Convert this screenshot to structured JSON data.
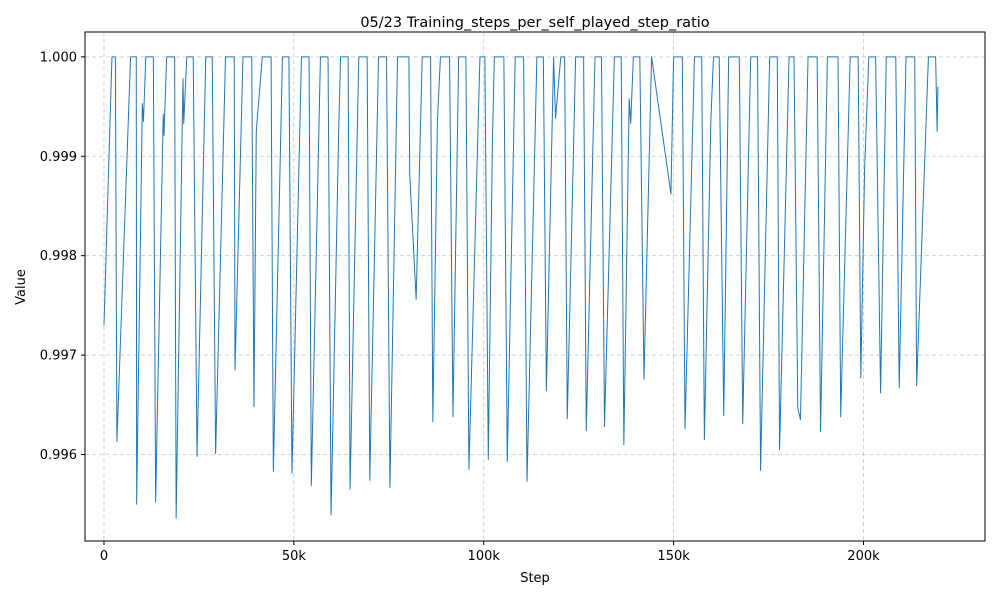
{
  "chart_data": {
    "type": "line",
    "title": "05/23  Training_steps_per_self_played_step_ratio",
    "xlabel": "Step",
    "ylabel": "Value",
    "xlim": [
      -5000,
      232000
    ],
    "ylim": [
      0.99513,
      1.00025
    ],
    "grid": true,
    "line_color": "#1f77b4",
    "x_ticks": [
      {
        "value": 0,
        "label": "0"
      },
      {
        "value": 50000,
        "label": "50k"
      },
      {
        "value": 100000,
        "label": "100k"
      },
      {
        "value": 150000,
        "label": "150k"
      },
      {
        "value": 200000,
        "label": "200k"
      }
    ],
    "y_ticks": [
      {
        "value": 0.996,
        "label": "0.996"
      },
      {
        "value": 0.997,
        "label": "0.997"
      },
      {
        "value": 0.998,
        "label": "0.998"
      },
      {
        "value": 0.999,
        "label": "0.999"
      },
      {
        "value": 1.0,
        "label": "1.000"
      }
    ],
    "series": [
      {
        "values": [
          [
            0,
            0.9973
          ],
          [
            2100,
            1.0
          ],
          [
            3000,
            1.0
          ],
          [
            3400,
            0.99613
          ],
          [
            7000,
            1.0
          ],
          [
            8500,
            1.0
          ],
          [
            8600,
            0.9955
          ],
          [
            10100,
            0.99953
          ],
          [
            10400,
            0.99935
          ],
          [
            11000,
            1.0
          ],
          [
            13000,
            1.0
          ],
          [
            13600,
            0.99552
          ],
          [
            15600,
            0.99942
          ],
          [
            15800,
            0.99921
          ],
          [
            16500,
            1.0
          ],
          [
            18600,
            1.0
          ],
          [
            19000,
            0.99536
          ],
          [
            20800,
            0.99978
          ],
          [
            21000,
            0.99933
          ],
          [
            21800,
            1.0
          ],
          [
            23500,
            1.0
          ],
          [
            24500,
            0.99598
          ],
          [
            26800,
            1.0
          ],
          [
            28500,
            1.0
          ],
          [
            29400,
            0.99601
          ],
          [
            32000,
            1.0
          ],
          [
            34300,
            1.0
          ],
          [
            34500,
            0.99685
          ],
          [
            36600,
            1.0
          ],
          [
            38900,
            1.0
          ],
          [
            39500,
            0.99648
          ],
          [
            40100,
            0.99925
          ],
          [
            41700,
            1.0
          ],
          [
            44000,
            1.0
          ],
          [
            44600,
            0.99583
          ],
          [
            47000,
            1.0
          ],
          [
            48700,
            1.0
          ],
          [
            49500,
            0.99581
          ],
          [
            52000,
            1.0
          ],
          [
            54000,
            1.0
          ],
          [
            54600,
            0.99569
          ],
          [
            57000,
            1.0
          ],
          [
            59000,
            1.0
          ],
          [
            59800,
            0.99539
          ],
          [
            61800,
            0.99925
          ],
          [
            62300,
            1.0
          ],
          [
            64300,
            1.0
          ],
          [
            64800,
            0.99565
          ],
          [
            67100,
            1.0
          ],
          [
            69300,
            1.0
          ],
          [
            70000,
            0.99574
          ],
          [
            72300,
            1.0
          ],
          [
            74400,
            1.0
          ],
          [
            75300,
            0.99567
          ],
          [
            77300,
            1.0
          ],
          [
            80300,
            1.0
          ],
          [
            80500,
            0.99883
          ],
          [
            82200,
            0.99756
          ],
          [
            83800,
            1.0
          ],
          [
            86000,
            1.0
          ],
          [
            86600,
            0.99633
          ],
          [
            87800,
            0.99935
          ],
          [
            88600,
            1.0
          ],
          [
            91000,
            1.0
          ],
          [
            91900,
            0.99638
          ],
          [
            93400,
            1.0
          ],
          [
            95300,
            1.0
          ],
          [
            96100,
            0.99585
          ],
          [
            99000,
            1.0
          ],
          [
            100300,
            1.0
          ],
          [
            101200,
            0.99595
          ],
          [
            102300,
            0.99918
          ],
          [
            102800,
            1.0
          ],
          [
            105300,
            1.0
          ],
          [
            106200,
            0.99593
          ],
          [
            108300,
            1.0
          ],
          [
            110500,
            1.0
          ],
          [
            111400,
            0.99573
          ],
          [
            114000,
            1.0
          ],
          [
            115700,
            1.0
          ],
          [
            116500,
            0.99664
          ],
          [
            118400,
            1.0
          ],
          [
            118900,
            0.99938
          ],
          [
            120300,
            1.0
          ],
          [
            121300,
            1.0
          ],
          [
            122000,
            0.99636
          ],
          [
            124200,
            1.0
          ],
          [
            126300,
            1.0
          ],
          [
            127000,
            0.99624
          ],
          [
            129300,
            1.0
          ],
          [
            131000,
            1.0
          ],
          [
            131800,
            0.99628
          ],
          [
            134400,
            1.0
          ],
          [
            136200,
            1.0
          ],
          [
            136900,
            0.9961
          ],
          [
            138300,
            0.99958
          ],
          [
            138700,
            0.99933
          ],
          [
            139400,
            1.0
          ],
          [
            141100,
            1.0
          ],
          [
            142200,
            0.99676
          ],
          [
            144200,
            1.0
          ],
          [
            149300,
            0.99862
          ],
          [
            150000,
            1.0
          ],
          [
            152300,
            1.0
          ],
          [
            153000,
            0.99626
          ],
          [
            155500,
            1.0
          ],
          [
            157400,
            1.0
          ],
          [
            158100,
            0.99615
          ],
          [
            159800,
            0.99935
          ],
          [
            160500,
            1.0
          ],
          [
            162000,
            1.0
          ],
          [
            163200,
            0.99639
          ],
          [
            164500,
            1.0
          ],
          [
            167300,
            1.0
          ],
          [
            168200,
            0.99631
          ],
          [
            170300,
            1.0
          ],
          [
            172100,
            1.0
          ],
          [
            172900,
            0.99584
          ],
          [
            175300,
            1.0
          ],
          [
            177300,
            1.0
          ],
          [
            177900,
            0.99605
          ],
          [
            180400,
            1.0
          ],
          [
            181700,
            1.0
          ],
          [
            182700,
            0.99647
          ],
          [
            183400,
            0.99635
          ],
          [
            185400,
            1.0
          ],
          [
            187800,
            1.0
          ],
          [
            188700,
            0.99623
          ],
          [
            190500,
            1.0
          ],
          [
            193300,
            1.0
          ],
          [
            194000,
            0.99638
          ],
          [
            196500,
            1.0
          ],
          [
            198600,
            1.0
          ],
          [
            199300,
            0.99677
          ],
          [
            200300,
            0.99888
          ],
          [
            201400,
            1.0
          ],
          [
            203200,
            1.0
          ],
          [
            204500,
            0.99662
          ],
          [
            206000,
            1.0
          ],
          [
            208500,
            1.0
          ],
          [
            209400,
            0.99667
          ],
          [
            211200,
            1.0
          ],
          [
            213500,
            1.0
          ],
          [
            214000,
            0.99669
          ],
          [
            217100,
            1.0
          ],
          [
            219000,
            1.0
          ],
          [
            219400,
            0.99925
          ],
          [
            219600,
            0.9997
          ]
        ]
      }
    ]
  }
}
